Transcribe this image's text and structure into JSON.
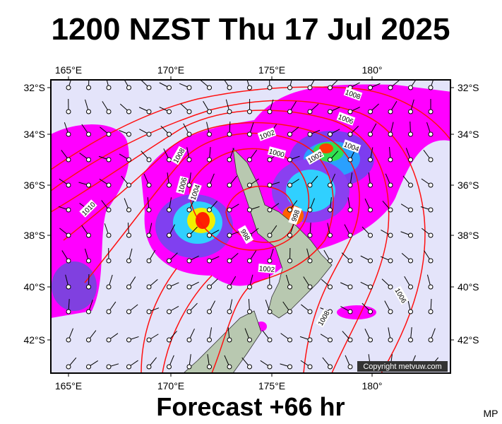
{
  "title": "1200 NZST Thu 17 Jul 2025",
  "footer": "Forecast +66 hr",
  "credit": "MP",
  "copyright": "Copyright metvuw.com",
  "longitude_labels": [
    "165°E",
    "170°E",
    "175°E",
    "180°"
  ],
  "latitude_labels": [
    "32°S",
    "34°S",
    "36°S",
    "38°S",
    "40°S",
    "42°S"
  ],
  "isobar_labels": [
    "1008",
    "1006",
    "1004",
    "1002",
    "1002",
    "1000",
    "1008",
    "1006",
    "1004",
    "1010",
    "998",
    "998",
    "1002",
    "1006",
    "1008"
  ]
}
